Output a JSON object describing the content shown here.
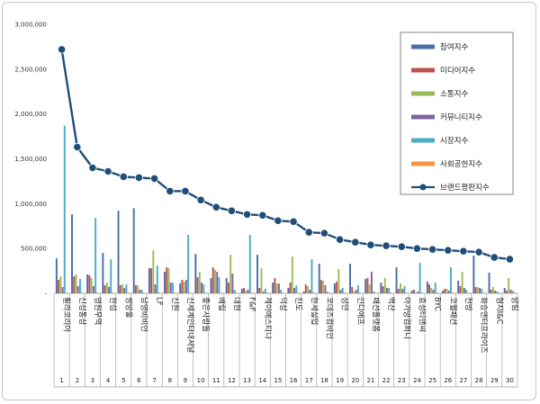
{
  "chart_data": {
    "type": "bar",
    "title": "",
    "xlabel": "",
    "ylabel": "",
    "ylim": [
      0,
      3000000
    ],
    "yticks": [
      "-",
      "500,000",
      "1,000,000",
      "1,500,000",
      "2,000,000",
      "2,500,000",
      "3,000,000"
    ],
    "ytick_values": [
      0,
      500000,
      1000000,
      1500000,
      2000000,
      2500000,
      3000000
    ],
    "categories": [
      "휠라코리아",
      "신성통상",
      "영원무역",
      "한섬",
      "쌍방울",
      "남영비비안",
      "LF",
      "신원",
      "신세계인터내셔날",
      "좋은사람들",
      "배럴",
      "대현",
      "F&F",
      "제이에스티나",
      "덕성",
      "진도",
      "한세실업",
      "코데즈컴바인",
      "성안",
      "인디에프",
      "패션플랫폼",
      "백산",
      "아가방컴퍼니",
      "효성티앤씨",
      "BYC",
      "코웰패션",
      "전방",
      "화승엔터프라이즈",
      "형지I&C",
      "방림"
    ],
    "numbers": [
      "1",
      "2",
      "3",
      "4",
      "5",
      "6",
      "7",
      "8",
      "9",
      "10",
      "11",
      "12",
      "13",
      "14",
      "15",
      "16",
      "17",
      "18",
      "19",
      "20",
      "21",
      "22",
      "23",
      "24",
      "25",
      "26",
      "27",
      "28",
      "29",
      "30"
    ],
    "series": [
      {
        "name": "참여지수",
        "color": "#4a6ea8",
        "values": [
          390000,
          880000,
          210000,
          450000,
          920000,
          950000,
          280000,
          240000,
          110000,
          440000,
          170000,
          170000,
          50000,
          430000,
          120000,
          60000,
          20000,
          330000,
          110000,
          330000,
          160000,
          120000,
          290000,
          30000,
          130000,
          30000,
          140000,
          420000,
          230000,
          60000
        ]
      },
      {
        "name": "미디어지수",
        "color": "#c0504d",
        "values": [
          150000,
          190000,
          200000,
          90000,
          90000,
          90000,
          280000,
          290000,
          150000,
          180000,
          290000,
          120000,
          60000,
          60000,
          170000,
          120000,
          100000,
          150000,
          130000,
          70000,
          170000,
          80000,
          50000,
          40000,
          100000,
          50000,
          80000,
          70000,
          40000,
          30000
        ]
      },
      {
        "name": "소통지수",
        "color": "#9bbb59",
        "values": [
          190000,
          210000,
          170000,
          120000,
          100000,
          90000,
          480000,
          280000,
          130000,
          240000,
          260000,
          430000,
          30000,
          280000,
          110000,
          410000,
          80000,
          140000,
          270000,
          20000,
          100000,
          170000,
          110000,
          10000,
          60000,
          50000,
          240000,
          70000,
          70000,
          170000
        ]
      },
      {
        "name": "커뮤니티지수",
        "color": "#8064a2",
        "values": [
          70000,
          80000,
          80000,
          70000,
          60000,
          40000,
          100000,
          120000,
          150000,
          120000,
          240000,
          220000,
          40000,
          20000,
          110000,
          60000,
          40000,
          90000,
          40000,
          40000,
          240000,
          60000,
          50000,
          20000,
          40000,
          30000,
          60000,
          60000,
          30000,
          40000
        ]
      },
      {
        "name": "시장지수",
        "color": "#4bacc6",
        "values": [
          1870000,
          160000,
          840000,
          380000,
          100000,
          40000,
          310000,
          120000,
          650000,
          100000,
          180000,
          40000,
          650000,
          50000,
          40000,
          90000,
          380000,
          20000,
          60000,
          90000,
          20000,
          60000,
          80000,
          340000,
          120000,
          290000,
          40000,
          50000,
          20000,
          30000
        ]
      },
      {
        "name": "사회공헌지수",
        "color": "#f79646",
        "values": [
          10000,
          10000,
          10000,
          10000,
          10000,
          10000,
          10000,
          10000,
          10000,
          10000,
          10000,
          10000,
          10000,
          10000,
          10000,
          10000,
          10000,
          10000,
          10000,
          10000,
          10000,
          10000,
          10000,
          10000,
          10000,
          10000,
          10000,
          10000,
          10000,
          10000
        ]
      }
    ],
    "line": {
      "name": "브랜드평판지수",
      "color": "#1f4e79",
      "values": [
        2720000,
        1630000,
        1400000,
        1360000,
        1300000,
        1290000,
        1280000,
        1140000,
        1140000,
        1040000,
        960000,
        920000,
        880000,
        870000,
        810000,
        800000,
        680000,
        670000,
        600000,
        570000,
        540000,
        530000,
        520000,
        500000,
        490000,
        480000,
        470000,
        460000,
        400000,
        380000
      ]
    },
    "legend": [
      "참여지수",
      "미디어지수",
      "소통지수",
      "커뮤니티지수",
      "시장지수",
      "사회공헌지수",
      "브랜드평판지수"
    ]
  }
}
